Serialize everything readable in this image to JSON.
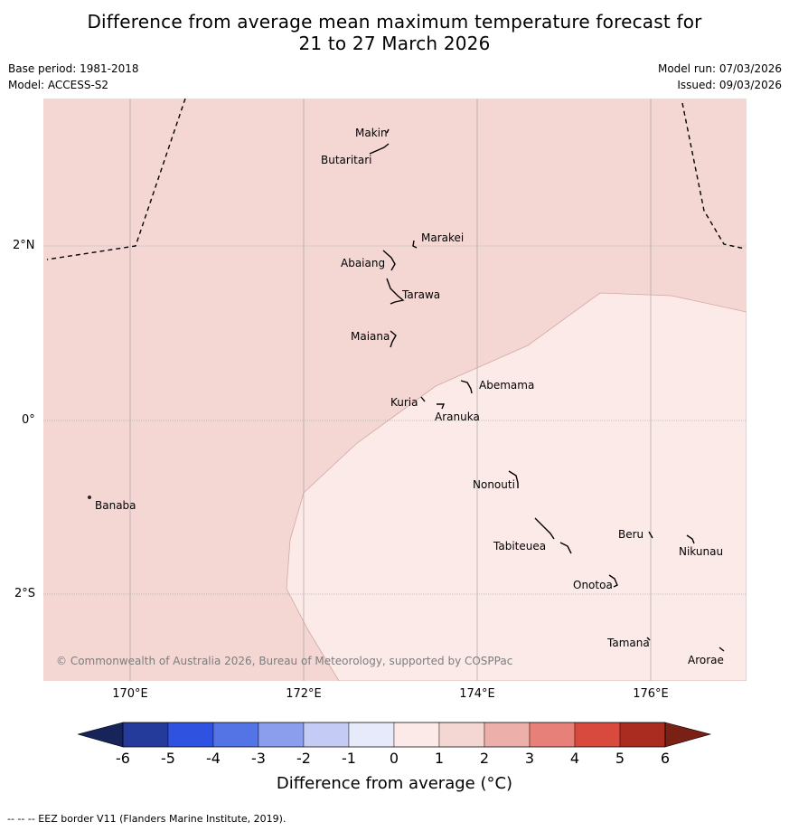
{
  "title_line1": "Difference from average mean maximum temperature forecast for",
  "title_line2": "21 to 27 March 2026",
  "meta": {
    "base_period": "Base period: 1981-2018",
    "model": "Model: ACCESS-S2",
    "model_run": "Model run: 07/03/2026",
    "issued": "Issued: 09/03/2026"
  },
  "map": {
    "places": [
      "Makin",
      "Butaritari",
      "Marakei",
      "Abaiang",
      "Tarawa",
      "Maiana",
      "Abemama",
      "Kuria",
      "Aranuka",
      "Banaba",
      "Nonouti",
      "Tabiteuea",
      "Beru",
      "Nikunau",
      "Onotoa",
      "Tamana",
      "Arorae"
    ],
    "lat_labels": [
      "2°N",
      "0°",
      "2°S"
    ],
    "lon_labels": [
      "170°E",
      "172°E",
      "174°E",
      "176°E"
    ],
    "copyright": "© Commonwealth of Australia 2026, Bureau of Meteorology, supported by COSPPac",
    "category_colors": {
      "0_to_1": "#fbeae8",
      "1_to_2": "#f4d6d3"
    }
  },
  "colorbar": {
    "ticks": [
      "-6",
      "-5",
      "-4",
      "-3",
      "-2",
      "-1",
      "0",
      "1",
      "2",
      "3",
      "4",
      "5",
      "6"
    ],
    "colors": [
      "#243b9c",
      "#2f52e0",
      "#5474e6",
      "#8b9ded",
      "#c4cbf4",
      "#e7eafb",
      "#fbeae8",
      "#f4d6d3",
      "#edafaa",
      "#e78078",
      "#d84a3e",
      "#aa2b20"
    ],
    "extend_low_color": "#16245a",
    "extend_high_color": "#7a2014",
    "label": "Difference from average (°C)"
  },
  "footnote": "--  --  -- EEZ border V11 (Flanders Marine Institute, 2019)."
}
